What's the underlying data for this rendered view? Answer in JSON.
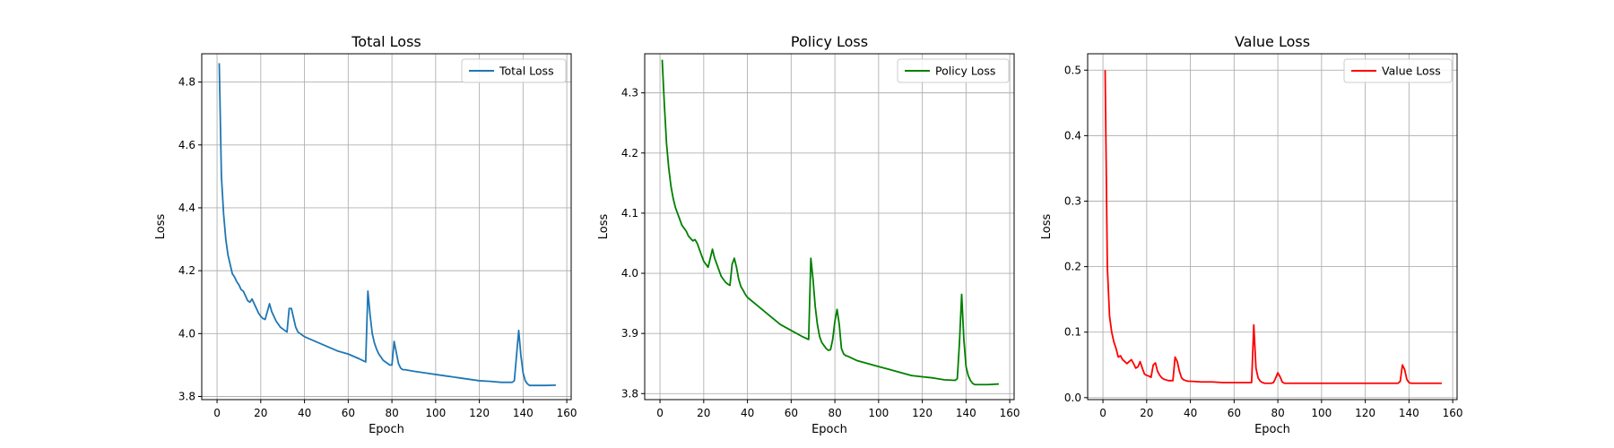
{
  "chart_data": [
    {
      "type": "line",
      "title": "Total Loss",
      "xlabel": "Epoch",
      "ylabel": "Loss",
      "xlim": [
        -7,
        162
      ],
      "ylim": [
        3.79,
        4.89
      ],
      "xticks": [
        0,
        20,
        40,
        60,
        80,
        100,
        120,
        140,
        160
      ],
      "yticks": [
        3.8,
        4.0,
        4.2,
        4.4,
        4.6,
        4.8
      ],
      "ytick_labels": [
        "3.8",
        "4.0",
        "4.2",
        "4.4",
        "4.6",
        "4.8"
      ],
      "grid": true,
      "legend_position": "top-right",
      "series": [
        {
          "name": "Total Loss",
          "color": "#1f77b4",
          "x": [
            1,
            2,
            3,
            4,
            5,
            6,
            7,
            8,
            9,
            10,
            11,
            12,
            13,
            14,
            15,
            16,
            17,
            18,
            19,
            20,
            21,
            22,
            23,
            24,
            25,
            26,
            27,
            28,
            29,
            30,
            31,
            32,
            33,
            34,
            35,
            36,
            37,
            38,
            39,
            40,
            45,
            50,
            55,
            60,
            65,
            68,
            69,
            70,
            71,
            72,
            73,
            74,
            75,
            76,
            77,
            78,
            79,
            80,
            81,
            82,
            83,
            84,
            85,
            86,
            90,
            95,
            100,
            105,
            110,
            115,
            120,
            125,
            130,
            135,
            136,
            137,
            138,
            139,
            140,
            141,
            142,
            143,
            144,
            145,
            150,
            155
          ],
          "y": [
            4.86,
            4.5,
            4.38,
            4.3,
            4.25,
            4.22,
            4.19,
            4.18,
            4.165,
            4.155,
            4.14,
            4.135,
            4.12,
            4.105,
            4.1,
            4.11,
            4.095,
            4.08,
            4.065,
            4.055,
            4.048,
            4.045,
            4.07,
            4.095,
            4.07,
            4.055,
            4.04,
            4.03,
            4.02,
            4.015,
            4.01,
            4.005,
            4.08,
            4.08,
            4.05,
            4.02,
            4.005,
            4.0,
            3.995,
            3.99,
            3.975,
            3.96,
            3.945,
            3.935,
            3.92,
            3.91,
            4.135,
            4.06,
            4.0,
            3.97,
            3.95,
            3.935,
            3.925,
            3.915,
            3.91,
            3.905,
            3.9,
            3.9,
            3.975,
            3.94,
            3.905,
            3.89,
            3.885,
            3.885,
            3.88,
            3.875,
            3.87,
            3.865,
            3.86,
            3.855,
            3.85,
            3.848,
            3.845,
            3.845,
            3.85,
            3.93,
            4.01,
            3.93,
            3.875,
            3.85,
            3.84,
            3.835,
            3.835,
            3.835,
            3.835,
            3.836
          ]
        }
      ]
    },
    {
      "type": "line",
      "title": "Policy Loss",
      "xlabel": "Epoch",
      "ylabel": "Loss",
      "xlim": [
        -7,
        162
      ],
      "ylim": [
        3.79,
        4.365
      ],
      "xticks": [
        0,
        20,
        40,
        60,
        80,
        100,
        120,
        140,
        160
      ],
      "yticks": [
        3.8,
        3.9,
        4.0,
        4.1,
        4.2,
        4.3
      ],
      "ytick_labels": [
        "3.8",
        "3.9",
        "4.0",
        "4.1",
        "4.2",
        "4.3"
      ],
      "grid": true,
      "legend_position": "top-right",
      "series": [
        {
          "name": "Policy Loss",
          "color": "#008000",
          "x": [
            1,
            2,
            3,
            4,
            5,
            6,
            7,
            8,
            9,
            10,
            11,
            12,
            13,
            14,
            15,
            16,
            17,
            18,
            19,
            20,
            21,
            22,
            23,
            24,
            25,
            26,
            27,
            28,
            29,
            30,
            31,
            32,
            33,
            34,
            35,
            36,
            37,
            38,
            39,
            40,
            45,
            50,
            55,
            60,
            65,
            68,
            69,
            70,
            71,
            72,
            73,
            74,
            75,
            76,
            77,
            78,
            79,
            80,
            81,
            82,
            83,
            84,
            85,
            86,
            90,
            95,
            100,
            105,
            110,
            115,
            120,
            125,
            130,
            135,
            136,
            137,
            138,
            139,
            140,
            141,
            142,
            143,
            144,
            145,
            150,
            155
          ],
          "y": [
            4.355,
            4.28,
            4.215,
            4.175,
            4.145,
            4.125,
            4.11,
            4.1,
            4.09,
            4.08,
            4.075,
            4.07,
            4.062,
            4.058,
            4.054,
            4.056,
            4.05,
            4.04,
            4.03,
            4.02,
            4.015,
            4.01,
            4.025,
            4.04,
            4.025,
            4.015,
            4.005,
            3.995,
            3.99,
            3.985,
            3.982,
            3.98,
            4.015,
            4.025,
            4.01,
            3.99,
            3.978,
            3.972,
            3.965,
            3.96,
            3.945,
            3.93,
            3.915,
            3.905,
            3.895,
            3.89,
            4.025,
            3.99,
            3.945,
            3.915,
            3.895,
            3.885,
            3.88,
            3.875,
            3.872,
            3.873,
            3.89,
            3.92,
            3.94,
            3.915,
            3.875,
            3.866,
            3.863,
            3.862,
            3.855,
            3.85,
            3.845,
            3.84,
            3.835,
            3.83,
            3.828,
            3.826,
            3.823,
            3.822,
            3.825,
            3.885,
            3.965,
            3.89,
            3.845,
            3.83,
            3.822,
            3.817,
            3.815,
            3.815,
            3.815,
            3.816
          ]
        }
      ]
    },
    {
      "type": "line",
      "title": "Value Loss",
      "xlabel": "Epoch",
      "ylabel": "Loss",
      "xlim": [
        -7,
        162
      ],
      "ylim": [
        -0.003,
        0.525
      ],
      "xticks": [
        0,
        20,
        40,
        60,
        80,
        100,
        120,
        140,
        160
      ],
      "yticks": [
        0.0,
        0.1,
        0.2,
        0.3,
        0.4,
        0.5
      ],
      "ytick_labels": [
        "0.0",
        "0.1",
        "0.2",
        "0.3",
        "0.4",
        "0.5"
      ],
      "grid": true,
      "legend_position": "top-right",
      "series": [
        {
          "name": "Value Loss",
          "color": "#ff0000",
          "x": [
            1,
            2,
            3,
            4,
            5,
            6,
            7,
            8,
            9,
            10,
            11,
            12,
            13,
            14,
            15,
            16,
            17,
            18,
            19,
            20,
            21,
            22,
            23,
            24,
            25,
            26,
            27,
            28,
            29,
            30,
            31,
            32,
            33,
            34,
            35,
            36,
            37,
            38,
            39,
            40,
            45,
            50,
            55,
            60,
            65,
            68,
            69,
            70,
            71,
            72,
            73,
            74,
            75,
            76,
            77,
            78,
            79,
            80,
            81,
            82,
            83,
            84,
            85,
            86,
            90,
            95,
            100,
            105,
            110,
            115,
            120,
            125,
            130,
            135,
            136,
            137,
            138,
            139,
            140,
            141,
            142,
            143,
            144,
            145,
            150,
            155
          ],
          "y": [
            0.5,
            0.2,
            0.125,
            0.1,
            0.085,
            0.075,
            0.062,
            0.064,
            0.058,
            0.055,
            0.052,
            0.055,
            0.058,
            0.052,
            0.045,
            0.047,
            0.055,
            0.045,
            0.036,
            0.034,
            0.033,
            0.031,
            0.05,
            0.053,
            0.04,
            0.034,
            0.03,
            0.028,
            0.027,
            0.026,
            0.026,
            0.026,
            0.062,
            0.055,
            0.04,
            0.03,
            0.027,
            0.026,
            0.025,
            0.025,
            0.024,
            0.024,
            0.023,
            0.023,
            0.023,
            0.023,
            0.111,
            0.045,
            0.03,
            0.025,
            0.023,
            0.022,
            0.022,
            0.022,
            0.022,
            0.023,
            0.03,
            0.038,
            0.032,
            0.024,
            0.022,
            0.022,
            0.022,
            0.022,
            0.022,
            0.022,
            0.022,
            0.022,
            0.022,
            0.022,
            0.022,
            0.022,
            0.022,
            0.022,
            0.025,
            0.05,
            0.043,
            0.028,
            0.023,
            0.022,
            0.022,
            0.022,
            0.022,
            0.022,
            0.022,
            0.022
          ]
        }
      ]
    }
  ]
}
